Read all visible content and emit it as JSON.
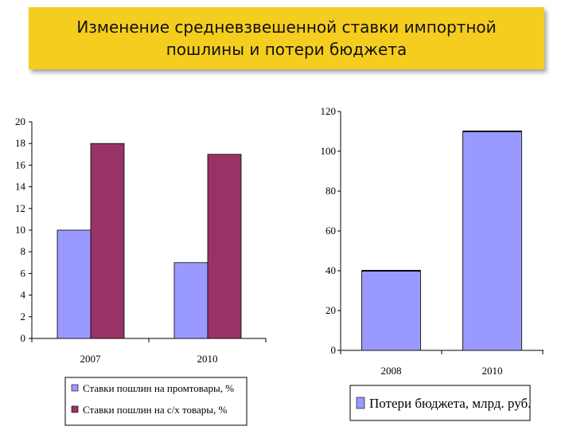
{
  "title": "Изменение  средневзвешенной ставки импортной\nпошлины и потери бюджета",
  "colors": {
    "title_bg": "#f5cd1f",
    "series1": "#9999ff",
    "series2": "#993366",
    "budget": "#9999ff"
  },
  "chart_data": [
    {
      "type": "bar",
      "categories": [
        "2007",
        "2010"
      ],
      "series": [
        {
          "name": "Ставки пошлин на промтовары, %",
          "values": [
            10,
            7
          ],
          "color": "#9999ff"
        },
        {
          "name": "Ставки пошлин на с/х товары, %",
          "values": [
            18,
            17
          ],
          "color": "#993366"
        }
      ],
      "ylim": [
        0,
        20
      ],
      "yticks": [
        "0",
        "2",
        "4",
        "6",
        "8",
        "10",
        "12",
        "14",
        "16",
        "18",
        "20"
      ],
      "legend": "bottom"
    },
    {
      "type": "bar",
      "categories": [
        "2008",
        "2010"
      ],
      "series": [
        {
          "name": "Потери бюджета, млрд. руб.",
          "values": [
            40,
            110
          ],
          "color": "#9999ff"
        }
      ],
      "ylim": [
        0,
        120
      ],
      "yticks": [
        "0",
        "20",
        "40",
        "60",
        "80",
        "100",
        "120"
      ],
      "legend": "bottom"
    }
  ]
}
